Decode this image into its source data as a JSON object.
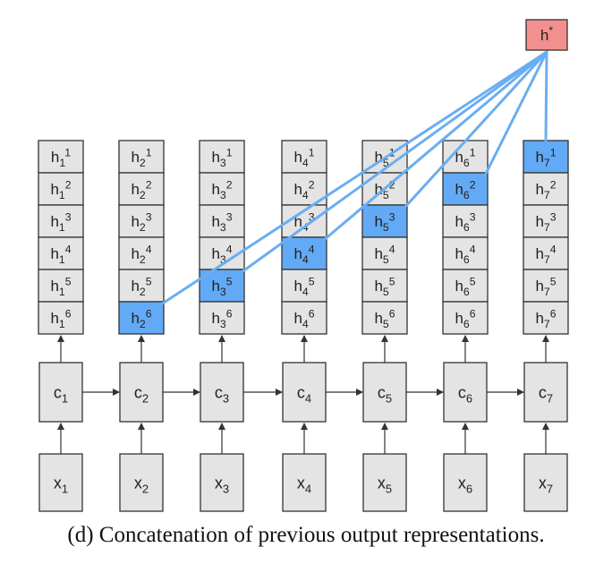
{
  "colors": {
    "cell_fill": "#e4e4e4",
    "highlight_fill": "#62aaf5",
    "output_fill": "#f48f8f",
    "connection_line": "#6aaef2",
    "stroke": "#333333"
  },
  "output": {
    "base": "h",
    "sup": "*"
  },
  "columns": [
    {
      "c": {
        "base": "c",
        "sub": "1"
      },
      "x": {
        "base": "x",
        "sub": "1"
      },
      "states": [
        {
          "base": "h",
          "sub": "1",
          "sup": "1"
        },
        {
          "base": "h",
          "sub": "1",
          "sup": "2"
        },
        {
          "base": "h",
          "sub": "1",
          "sup": "3"
        },
        {
          "base": "h",
          "sub": "1",
          "sup": "4"
        },
        {
          "base": "h",
          "sub": "1",
          "sup": "5"
        },
        {
          "base": "h",
          "sub": "1",
          "sup": "6"
        }
      ],
      "highlight": null
    },
    {
      "c": {
        "base": "c",
        "sub": "2"
      },
      "x": {
        "base": "x",
        "sub": "2"
      },
      "states": [
        {
          "base": "h",
          "sub": "2",
          "sup": "1"
        },
        {
          "base": "h",
          "sub": "2",
          "sup": "2"
        },
        {
          "base": "h",
          "sub": "2",
          "sup": "3"
        },
        {
          "base": "h",
          "sub": "2",
          "sup": "4"
        },
        {
          "base": "h",
          "sub": "2",
          "sup": "5"
        },
        {
          "base": "h",
          "sub": "2",
          "sup": "6"
        }
      ],
      "highlight": 6
    },
    {
      "c": {
        "base": "c",
        "sub": "3"
      },
      "x": {
        "base": "x",
        "sub": "3"
      },
      "states": [
        {
          "base": "h",
          "sub": "3",
          "sup": "1"
        },
        {
          "base": "h",
          "sub": "3",
          "sup": "2"
        },
        {
          "base": "h",
          "sub": "3",
          "sup": "3"
        },
        {
          "base": "h",
          "sub": "3",
          "sup": "4"
        },
        {
          "base": "h",
          "sub": "3",
          "sup": "5"
        },
        {
          "base": "h",
          "sub": "3",
          "sup": "6"
        }
      ],
      "highlight": 5
    },
    {
      "c": {
        "base": "c",
        "sub": "4"
      },
      "x": {
        "base": "x",
        "sub": "4"
      },
      "states": [
        {
          "base": "h",
          "sub": "4",
          "sup": "1"
        },
        {
          "base": "h",
          "sub": "4",
          "sup": "2"
        },
        {
          "base": "h",
          "sub": "4",
          "sup": "3"
        },
        {
          "base": "h",
          "sub": "4",
          "sup": "4"
        },
        {
          "base": "h",
          "sub": "4",
          "sup": "5"
        },
        {
          "base": "h",
          "sub": "4",
          "sup": "6"
        }
      ],
      "highlight": 4
    },
    {
      "c": {
        "base": "c",
        "sub": "5"
      },
      "x": {
        "base": "x",
        "sub": "5"
      },
      "states": [
        {
          "base": "h",
          "sub": "5",
          "sup": "1"
        },
        {
          "base": "h",
          "sub": "5",
          "sup": "2"
        },
        {
          "base": "h",
          "sub": "5",
          "sup": "3"
        },
        {
          "base": "h",
          "sub": "5",
          "sup": "4"
        },
        {
          "base": "h",
          "sub": "5",
          "sup": "5"
        },
        {
          "base": "h",
          "sub": "5",
          "sup": "6"
        }
      ],
      "highlight": 3
    },
    {
      "c": {
        "base": "c",
        "sub": "6"
      },
      "x": {
        "base": "x",
        "sub": "6"
      },
      "states": [
        {
          "base": "h",
          "sub": "6",
          "sup": "1"
        },
        {
          "base": "h",
          "sub": "6",
          "sup": "2"
        },
        {
          "base": "h",
          "sub": "6",
          "sup": "3"
        },
        {
          "base": "h",
          "sub": "6",
          "sup": "4"
        },
        {
          "base": "h",
          "sub": "6",
          "sup": "5"
        },
        {
          "base": "h",
          "sub": "6",
          "sup": "6"
        }
      ],
      "highlight": 2
    },
    {
      "c": {
        "base": "c",
        "sub": "7"
      },
      "x": {
        "base": "x",
        "sub": "7"
      },
      "states": [
        {
          "base": "h",
          "sub": "7",
          "sup": "1"
        },
        {
          "base": "h",
          "sub": "7",
          "sup": "2"
        },
        {
          "base": "h",
          "sub": "7",
          "sup": "3"
        },
        {
          "base": "h",
          "sub": "7",
          "sup": "4"
        },
        {
          "base": "h",
          "sub": "7",
          "sup": "5"
        },
        {
          "base": "h",
          "sub": "7",
          "sup": "6"
        }
      ],
      "highlight": 1
    }
  ],
  "caption": "(d) Concatenation of previous output representations."
}
